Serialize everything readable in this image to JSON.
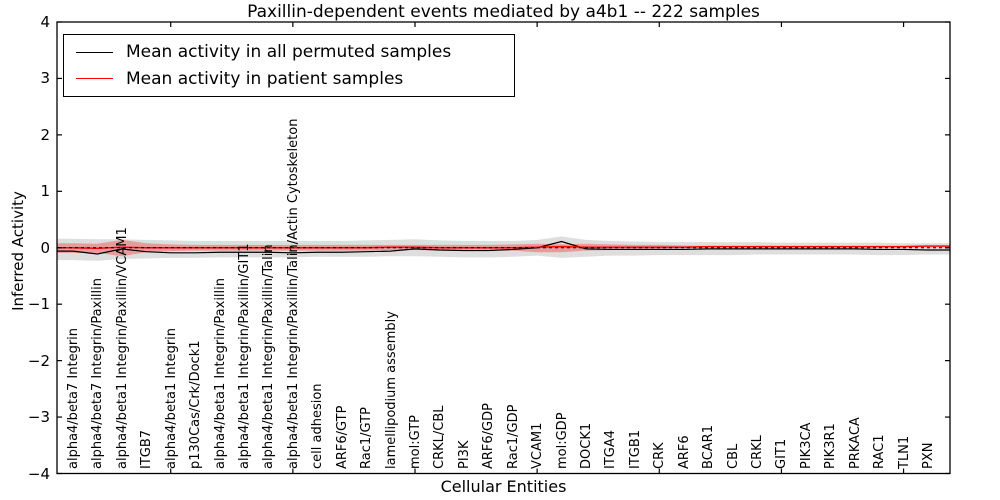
{
  "figure": {
    "title": "Paxillin-dependent events mediated by a4b1 -- 222 samples",
    "background_color": "#ffffff",
    "frame_color": "#000000"
  },
  "chart_data": {
    "type": "line",
    "title": "Paxillin-dependent events mediated by a4b1 -- 222 samples",
    "xlabel": "Cellular Entities",
    "ylabel": "Inferred Activity",
    "ylim": [
      -4,
      4
    ],
    "ytick_labels": [
      "4",
      "3",
      "2",
      "1",
      "0",
      "−1",
      "−2",
      "−3",
      "−4"
    ],
    "ytick_values": [
      4,
      3,
      2,
      1,
      0,
      -1,
      -2,
      -3,
      -4
    ],
    "xticks_at_categories": [
      5,
      10,
      15,
      20,
      25,
      30,
      35
    ],
    "grid": false,
    "legend_position": "upper left",
    "categories": [
      "alpha4/beta7 Integrin",
      "alpha4/beta7 Integrin/Paxillin",
      "alpha4/beta1 Integrin/Paxillin/VCAM1",
      "ITGB7",
      "alpha4/beta1 Integrin",
      "p130Cas/Crk/Dock1",
      "alpha4/beta1 Integrin/Paxillin",
      "alpha4/beta1 Integrin/Paxillin/GIT1",
      "alpha4/beta1 Integrin/Paxillin/Talin",
      "alpha4/beta1 Integrin/Paxillin/Talin/Actin Cytoskeleton",
      "cell adhesion",
      "ARF6/GTP",
      "Rac1/GTP",
      "lamellipodium assembly",
      "mol:GTP",
      "CRKL/CBL",
      "PI3K",
      "ARF6/GDP",
      "Rac1/GDP",
      "VCAM1",
      "mol:GDP",
      "DOCK1",
      "ITGA4",
      "ITGB1",
      "CRK",
      "ARF6",
      "BCAR1",
      "CBL",
      "CRKL",
      "GIT1",
      "PIK3CA",
      "PIK3R1",
      "PRKACA",
      "RAC1",
      "TLN1",
      "PXN"
    ],
    "series": [
      {
        "name": "Mean activity in all permuted samples",
        "color": "#000000",
        "style": "solid",
        "values": [
          -0.06,
          -0.11,
          -0.02,
          -0.07,
          -0.09,
          -0.09,
          -0.08,
          -0.08,
          -0.08,
          -0.09,
          -0.08,
          -0.08,
          -0.07,
          -0.06,
          -0.02,
          -0.04,
          -0.05,
          -0.05,
          -0.03,
          0.0,
          0.11,
          -0.02,
          -0.03,
          -0.03,
          -0.03,
          -0.03,
          -0.02,
          -0.02,
          -0.02,
          -0.02,
          -0.02,
          -0.02,
          -0.02,
          -0.03,
          -0.03,
          -0.04
        ]
      },
      {
        "name": "Mean activity in patient samples",
        "color": "#ff0000",
        "style": "solid",
        "values": [
          0.0,
          -0.01,
          0.01,
          0.0,
          0.0,
          0.0,
          0.0,
          0.0,
          0.0,
          0.0,
          0.0,
          0.0,
          0.0,
          0.01,
          0.01,
          0.0,
          0.0,
          0.0,
          0.0,
          0.01,
          0.02,
          0.01,
          0.01,
          0.01,
          0.01,
          0.01,
          0.02,
          0.02,
          0.02,
          0.02,
          0.02,
          0.02,
          0.02,
          0.02,
          0.02,
          0.03
        ]
      }
    ],
    "bands": [
      {
        "name": "permuted samples range",
        "color": "#000000",
        "opacity": 0.13,
        "upper": [
          0.16,
          0.15,
          0.15,
          0.14,
          0.13,
          0.12,
          0.12,
          0.12,
          0.12,
          0.12,
          0.12,
          0.12,
          0.13,
          0.14,
          0.15,
          0.13,
          0.12,
          0.12,
          0.12,
          0.14,
          0.2,
          0.14,
          0.12,
          0.11,
          0.1,
          0.1,
          0.1,
          0.1,
          0.1,
          0.09,
          0.09,
          0.09,
          0.09,
          0.09,
          0.08,
          0.08
        ],
        "lower": [
          -0.22,
          -0.23,
          -0.2,
          -0.19,
          -0.18,
          -0.18,
          -0.17,
          -0.17,
          -0.17,
          -0.17,
          -0.16,
          -0.16,
          -0.16,
          -0.15,
          -0.15,
          -0.16,
          -0.17,
          -0.17,
          -0.16,
          -0.14,
          -0.18,
          -0.16,
          -0.14,
          -0.14,
          -0.13,
          -0.13,
          -0.13,
          -0.13,
          -0.12,
          -0.12,
          -0.12,
          -0.12,
          -0.12,
          -0.13,
          -0.13,
          -0.12
        ]
      },
      {
        "name": "patient samples range",
        "color": "#ff0000",
        "opacity": 0.3,
        "upper": [
          0.08,
          0.07,
          0.14,
          0.08,
          0.06,
          0.05,
          0.05,
          0.05,
          0.05,
          0.05,
          0.05,
          0.05,
          0.05,
          0.05,
          0.05,
          0.05,
          0.05,
          0.05,
          0.06,
          0.07,
          0.06,
          0.07,
          0.06,
          0.05,
          0.05,
          0.04,
          0.03,
          0.03,
          0.03,
          0.03,
          0.03,
          0.03,
          0.03,
          0.03,
          0.03,
          0.04
        ],
        "lower": [
          -0.09,
          -0.09,
          -0.15,
          -0.08,
          -0.06,
          -0.05,
          -0.05,
          -0.05,
          -0.05,
          -0.05,
          -0.05,
          -0.05,
          -0.05,
          -0.04,
          -0.04,
          -0.05,
          -0.05,
          -0.05,
          -0.05,
          -0.08,
          -0.08,
          -0.05,
          -0.04,
          -0.03,
          -0.02,
          -0.01,
          0.01,
          0.01,
          0.01,
          0.01,
          0.01,
          0.01,
          0.01,
          0.01,
          0.01,
          0.01
        ]
      }
    ],
    "zero_line": {
      "value": 0,
      "color": "#000000",
      "style": "dashed"
    }
  }
}
